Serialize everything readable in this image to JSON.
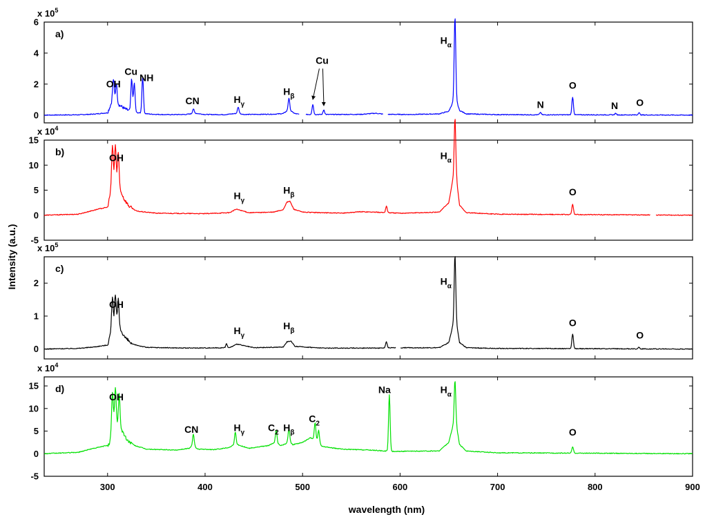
{
  "chart_data": {
    "type": "line",
    "xlabel": "wavelength (nm)",
    "ylabel": "Intensity (a.u.)",
    "xlim": [
      235,
      900
    ],
    "xticks": [
      300,
      400,
      500,
      600,
      700,
      800,
      900
    ],
    "grid": false,
    "panels": [
      {
        "letter": "a)",
        "color": "#0000ff",
        "exponent_label": "x 10",
        "exponent_power": "5",
        "ylim": [
          -0.5,
          6
        ],
        "yticks": [
          0,
          2,
          4,
          6
        ],
        "gaps": [
          [
            497,
            503
          ],
          [
            583,
            587
          ]
        ],
        "baseline": [
          [
            235,
            0.0
          ],
          [
            270,
            0.02
          ],
          [
            285,
            0.06
          ],
          [
            300,
            0.15
          ],
          [
            305,
            0.95
          ],
          [
            309,
            0.85
          ],
          [
            312,
            0.65
          ],
          [
            318,
            0.4
          ],
          [
            325,
            0.2
          ],
          [
            335,
            0.12
          ],
          [
            345,
            0.06
          ],
          [
            360,
            0.03
          ],
          [
            380,
            0.04
          ],
          [
            390,
            0.12
          ],
          [
            400,
            0.04
          ],
          [
            420,
            0.03
          ],
          [
            434,
            0.12
          ],
          [
            440,
            0.04
          ],
          [
            470,
            0.06
          ],
          [
            480,
            0.1
          ],
          [
            486,
            0.35
          ],
          [
            492,
            0.1
          ],
          [
            497,
            0.05
          ],
          [
            503,
            0.04
          ],
          [
            530,
            0.04
          ],
          [
            560,
            0.05
          ],
          [
            575,
            0.12
          ],
          [
            583,
            0.06
          ],
          [
            587,
            0.05
          ],
          [
            610,
            0.04
          ],
          [
            640,
            0.08
          ],
          [
            650,
            0.25
          ],
          [
            654,
            0.8
          ],
          [
            658,
            0.9
          ],
          [
            661,
            0.3
          ],
          [
            668,
            0.08
          ],
          [
            700,
            0.03
          ],
          [
            750,
            0.02
          ],
          [
            800,
            0.02
          ],
          [
            850,
            0.01
          ],
          [
            900,
            0.0
          ]
        ],
        "peaks": [
          {
            "x": 306,
            "y": 1.4
          },
          {
            "x": 309,
            "y": 1.2
          },
          {
            "x": 324.7,
            "y": 2.1
          },
          {
            "x": 327.4,
            "y": 1.9
          },
          {
            "x": 336,
            "y": 2.35
          },
          {
            "x": 388,
            "y": 0.3
          },
          {
            "x": 434,
            "y": 0.4
          },
          {
            "x": 486,
            "y": 0.75
          },
          {
            "x": 510.5,
            "y": 0.65
          },
          {
            "x": 521.8,
            "y": 0.3
          },
          {
            "x": 656.3,
            "y": 5.5
          },
          {
            "x": 744,
            "y": 0.15
          },
          {
            "x": 777,
            "y": 1.15
          },
          {
            "x": 821,
            "y": 0.1
          },
          {
            "x": 845,
            "y": 0.15
          }
        ],
        "annotations": [
          {
            "text": "OH",
            "sub": "",
            "x": 306,
            "y": 1.8
          },
          {
            "text": "Cu",
            "sub": "",
            "x": 324,
            "y": 2.6
          },
          {
            "text": "NH",
            "sub": "",
            "x": 340,
            "y": 2.2
          },
          {
            "text": "CN",
            "sub": "",
            "x": 387,
            "y": 0.7
          },
          {
            "text": "H",
            "sub": "γ",
            "x": 435,
            "y": 0.8
          },
          {
            "text": "H",
            "sub": "β",
            "x": 486,
            "y": 1.3
          },
          {
            "text": "Cu",
            "sub": "",
            "x": 520,
            "y": 3.3
          },
          {
            "text": "H",
            "sub": "α",
            "x": 647,
            "y": 4.6
          },
          {
            "text": "N",
            "sub": "",
            "x": 744,
            "y": 0.45
          },
          {
            "text": "O",
            "sub": "",
            "x": 777,
            "y": 1.7
          },
          {
            "text": "N",
            "sub": "",
            "x": 820,
            "y": 0.4
          },
          {
            "text": "O",
            "sub": "",
            "x": 846,
            "y": 0.6
          }
        ]
      },
      {
        "letter": "b)",
        "color": "#ff0000",
        "exponent_label": "x 10",
        "exponent_power": "4",
        "ylim": [
          -5,
          15
        ],
        "yticks": [
          -5,
          0,
          5,
          10,
          15
        ],
        "gaps": [
          [
            857,
            862
          ]
        ],
        "baseline": [
          [
            235,
            0.0
          ],
          [
            270,
            0.2
          ],
          [
            282,
            0.8
          ],
          [
            290,
            1.2
          ],
          [
            300,
            1.6
          ],
          [
            304,
            5.5
          ],
          [
            307,
            6.5
          ],
          [
            310,
            6.0
          ],
          [
            313,
            5.0
          ],
          [
            317,
            3.2
          ],
          [
            322,
            1.8
          ],
          [
            330,
            0.8
          ],
          [
            350,
            0.4
          ],
          [
            400,
            0.3
          ],
          [
            425,
            0.5
          ],
          [
            432,
            1.2
          ],
          [
            436,
            1.0
          ],
          [
            445,
            0.5
          ],
          [
            470,
            0.6
          ],
          [
            480,
            1.1
          ],
          [
            484,
            2.6
          ],
          [
            487,
            2.8
          ],
          [
            491,
            1.2
          ],
          [
            500,
            0.6
          ],
          [
            540,
            0.4
          ],
          [
            560,
            0.7
          ],
          [
            575,
            0.6
          ],
          [
            600,
            0.4
          ],
          [
            640,
            0.6
          ],
          [
            650,
            2.5
          ],
          [
            654,
            7.0
          ],
          [
            658,
            7.0
          ],
          [
            661,
            2.0
          ],
          [
            668,
            0.5
          ],
          [
            700,
            0.2
          ],
          [
            800,
            0.1
          ],
          [
            900,
            0.0
          ]
        ],
        "peaks": [
          {
            "x": 305,
            "y": 8.2
          },
          {
            "x": 308,
            "y": 7.8
          },
          {
            "x": 311,
            "y": 7.2
          },
          {
            "x": 586,
            "y": 1.3
          },
          {
            "x": 656.3,
            "y": 12.5
          },
          {
            "x": 777,
            "y": 2.1
          }
        ],
        "annotations": [
          {
            "text": "OH",
            "sub": "",
            "x": 309,
            "y": 10.8
          },
          {
            "text": "H",
            "sub": "γ",
            "x": 435,
            "y": 3.2
          },
          {
            "text": "H",
            "sub": "β",
            "x": 486,
            "y": 4.3
          },
          {
            "text": "H",
            "sub": "α",
            "x": 647,
            "y": 11.2
          },
          {
            "text": "O",
            "sub": "",
            "x": 777,
            "y": 4.0
          }
        ]
      },
      {
        "letter": "c)",
        "color": "#000000",
        "exponent_label": "x 10",
        "exponent_power": "5",
        "ylim": [
          -0.3,
          2.8
        ],
        "yticks": [
          0,
          1,
          2
        ],
        "gaps": [
          [
            596,
            600
          ]
        ],
        "baseline": [
          [
            235,
            0.0
          ],
          [
            270,
            0.02
          ],
          [
            285,
            0.06
          ],
          [
            300,
            0.12
          ],
          [
            304,
            0.6
          ],
          [
            307,
            0.75
          ],
          [
            310,
            0.7
          ],
          [
            314,
            0.55
          ],
          [
            318,
            0.35
          ],
          [
            325,
            0.15
          ],
          [
            340,
            0.05
          ],
          [
            380,
            0.03
          ],
          [
            425,
            0.04
          ],
          [
            433,
            0.15
          ],
          [
            440,
            0.1
          ],
          [
            450,
            0.04
          ],
          [
            480,
            0.06
          ],
          [
            484,
            0.22
          ],
          [
            488,
            0.25
          ],
          [
            492,
            0.08
          ],
          [
            520,
            0.03
          ],
          [
            580,
            0.03
          ],
          [
            590,
            0.04
          ],
          [
            640,
            0.04
          ],
          [
            650,
            0.2
          ],
          [
            654,
            0.7
          ],
          [
            658,
            0.75
          ],
          [
            661,
            0.2
          ],
          [
            668,
            0.04
          ],
          [
            700,
            0.02
          ],
          [
            800,
            0.01
          ],
          [
            900,
            0.0
          ]
        ],
        "peaks": [
          {
            "x": 305,
            "y": 0.95
          },
          {
            "x": 308,
            "y": 0.9
          },
          {
            "x": 311,
            "y": 0.85
          },
          {
            "x": 422,
            "y": 0.12
          },
          {
            "x": 586,
            "y": 0.18
          },
          {
            "x": 656.3,
            "y": 2.15
          },
          {
            "x": 777,
            "y": 0.45
          },
          {
            "x": 845,
            "y": 0.05
          }
        ],
        "annotations": [
          {
            "text": "OH",
            "sub": "",
            "x": 309,
            "y": 1.25
          },
          {
            "text": "H",
            "sub": "γ",
            "x": 435,
            "y": 0.45
          },
          {
            "text": "H",
            "sub": "β",
            "x": 486,
            "y": 0.6
          },
          {
            "text": "H",
            "sub": "α",
            "x": 647,
            "y": 1.95
          },
          {
            "text": "O",
            "sub": "",
            "x": 777,
            "y": 0.7
          },
          {
            "text": "O",
            "sub": "",
            "x": 846,
            "y": 0.32
          }
        ]
      },
      {
        "letter": "d)",
        "color": "#00e000",
        "exponent_label": "x 10",
        "exponent_power": "4",
        "ylim": [
          -5,
          17
        ],
        "yticks": [
          -5,
          0,
          5,
          10,
          15
        ],
        "gaps": [],
        "baseline": [
          [
            235,
            0.0
          ],
          [
            270,
            0.3
          ],
          [
            282,
            1.0
          ],
          [
            295,
            1.6
          ],
          [
            302,
            2.0
          ],
          [
            305,
            6.0
          ],
          [
            308,
            7.0
          ],
          [
            311,
            6.5
          ],
          [
            315,
            5.0
          ],
          [
            320,
            3.0
          ],
          [
            328,
            1.8
          ],
          [
            340,
            1.0
          ],
          [
            370,
            0.8
          ],
          [
            384,
            1.2
          ],
          [
            388,
            2.0
          ],
          [
            392,
            1.0
          ],
          [
            410,
            0.9
          ],
          [
            425,
            1.4
          ],
          [
            431,
            2.2
          ],
          [
            436,
            1.8
          ],
          [
            445,
            1.2
          ],
          [
            465,
            1.8
          ],
          [
            472,
            2.5
          ],
          [
            478,
            1.8
          ],
          [
            483,
            2.2
          ],
          [
            486,
            2.8
          ],
          [
            490,
            2.0
          ],
          [
            500,
            2.5
          ],
          [
            508,
            3.5
          ],
          [
            514,
            3.0
          ],
          [
            520,
            1.6
          ],
          [
            540,
            1.0
          ],
          [
            570,
            0.8
          ],
          [
            585,
            0.6
          ],
          [
            590,
            0.5
          ],
          [
            640,
            0.6
          ],
          [
            650,
            2.5
          ],
          [
            654,
            6.0
          ],
          [
            658,
            6.0
          ],
          [
            661,
            2.0
          ],
          [
            668,
            0.6
          ],
          [
            700,
            0.2
          ],
          [
            800,
            0.1
          ],
          [
            900,
            0.0
          ]
        ],
        "peaks": [
          {
            "x": 305,
            "y": 7.8
          },
          {
            "x": 308,
            "y": 7.5
          },
          {
            "x": 312,
            "y": 7.0
          },
          {
            "x": 388,
            "y": 2.4
          },
          {
            "x": 431,
            "y": 2.6
          },
          {
            "x": 473,
            "y": 2.9
          },
          {
            "x": 486,
            "y": 3.0
          },
          {
            "x": 512.8,
            "y": 3.8
          },
          {
            "x": 516.5,
            "y": 2.8
          },
          {
            "x": 589,
            "y": 12.5
          },
          {
            "x": 656.3,
            "y": 10.3
          },
          {
            "x": 777,
            "y": 1.4
          }
        ],
        "annotations": [
          {
            "text": "OH",
            "sub": "",
            "x": 309,
            "y": 11.8
          },
          {
            "text": "CN",
            "sub": "",
            "x": 386,
            "y": 4.6
          },
          {
            "text": "H",
            "sub": "γ",
            "x": 435,
            "y": 5.0
          },
          {
            "text": "C",
            "sub": "2",
            "x": 470,
            "y": 5.0
          },
          {
            "text": "H",
            "sub": "β",
            "x": 486,
            "y": 5.0
          },
          {
            "text": "C",
            "sub": "2",
            "x": 512,
            "y": 7.0
          },
          {
            "text": "Na",
            "sub": "",
            "x": 584,
            "y": 13.4
          },
          {
            "text": "H",
            "sub": "α",
            "x": 647,
            "y": 13.4
          },
          {
            "text": "O",
            "sub": "",
            "x": 777,
            "y": 4.0
          }
        ]
      }
    ]
  }
}
